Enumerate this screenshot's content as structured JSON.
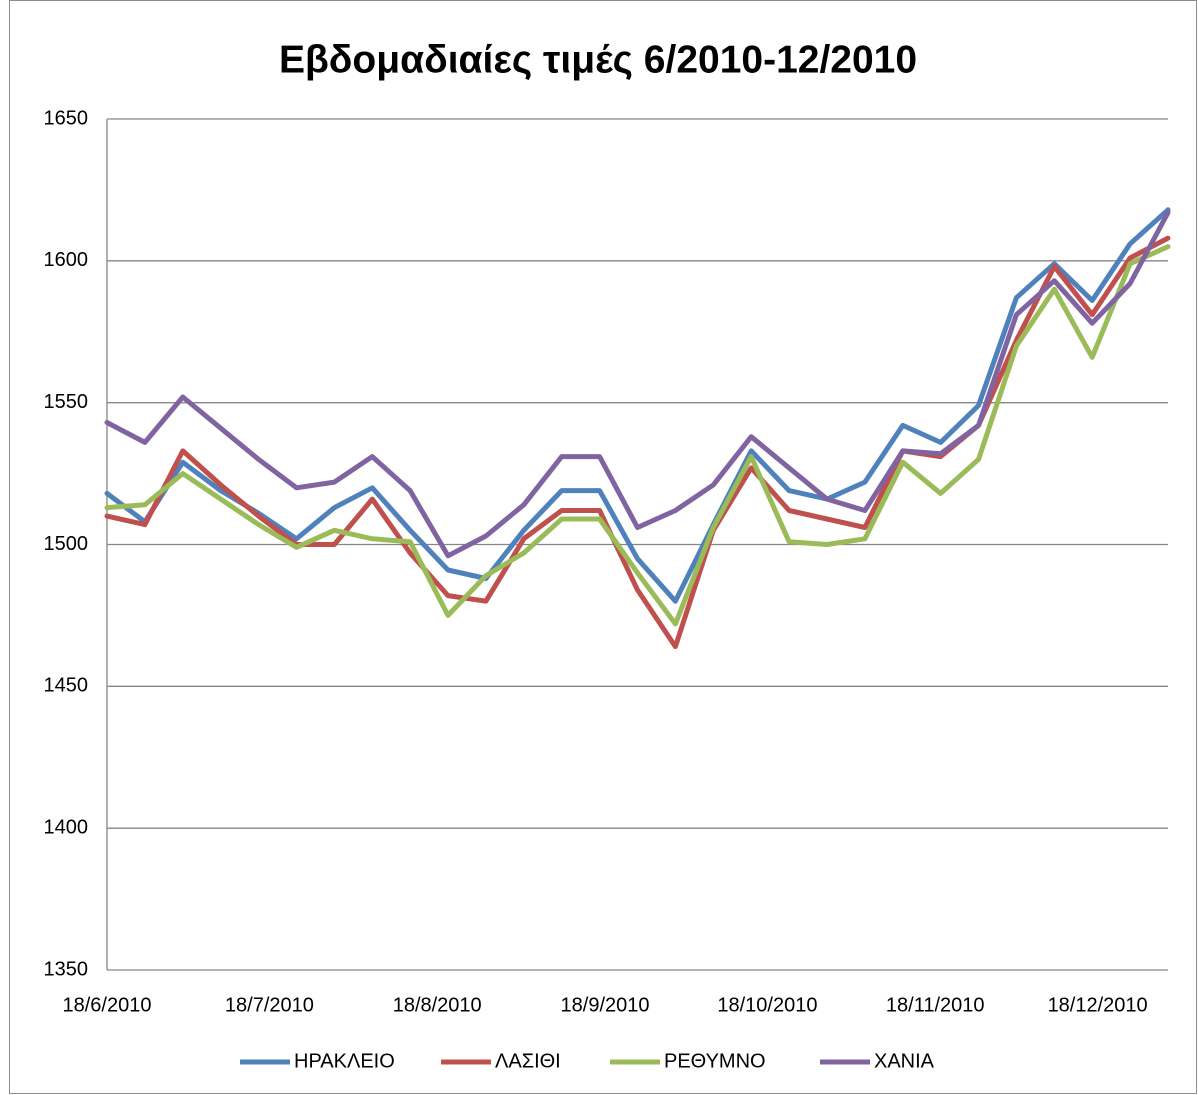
{
  "chart_data": {
    "type": "line",
    "title": "Εβδομαδιαίες τιμές 6/2010-12/2010",
    "x": [
      "2010-06-18",
      "2010-06-25",
      "2010-07-02",
      "2010-07-09",
      "2010-07-16",
      "2010-07-23",
      "2010-07-30",
      "2010-08-06",
      "2010-08-13",
      "2010-08-20",
      "2010-08-27",
      "2010-09-03",
      "2010-09-10",
      "2010-09-17",
      "2010-09-24",
      "2010-10-01",
      "2010-10-08",
      "2010-10-15",
      "2010-10-22",
      "2010-10-29",
      "2010-11-05",
      "2010-11-12",
      "2010-11-19",
      "2010-11-26",
      "2010-12-03",
      "2010-12-10",
      "2010-12-17",
      "2010-12-24",
      "2010-12-31"
    ],
    "series": [
      {
        "name": "ΗΡΑΚΛΕΙΟ",
        "color": "#4f81bd",
        "values": [
          1518,
          1508,
          1529,
          1519,
          1511,
          1502,
          1513,
          1520,
          1505,
          1491,
          1488,
          1505,
          1519,
          1519,
          1495,
          1480,
          1507,
          1533,
          1519,
          1516,
          1522,
          1542,
          1536,
          1549,
          1587,
          1599,
          1586,
          1606,
          1618
        ]
      },
      {
        "name": "ΛΑΣΙΘΙ",
        "color": "#c0504d",
        "values": [
          1510,
          1507,
          1533,
          1521,
          1510,
          1500,
          1500,
          1516,
          1497,
          1482,
          1480,
          1502,
          1512,
          1512,
          1484,
          1464,
          1505,
          1527,
          1512,
          1509,
          1506,
          1533,
          1531,
          1542,
          1572,
          1598,
          1581,
          1601,
          1608
        ]
      },
      {
        "name": "ΡΕΘΥΜΝΟ",
        "color": "#9bbb59",
        "values": [
          1513,
          1514,
          1525,
          1516,
          1507,
          1499,
          1505,
          1502,
          1501,
          1475,
          1489,
          1497,
          1509,
          1509,
          1490,
          1472,
          1506,
          1531,
          1501,
          1500,
          1502,
          1529,
          1518,
          1530,
          1570,
          1590,
          1566,
          1599,
          1605
        ]
      },
      {
        "name": "ΧΑΝΙΑ",
        "color": "#8064a2",
        "values": [
          1543,
          1536,
          1552,
          1541,
          1530,
          1520,
          1522,
          1531,
          1519,
          1496,
          1503,
          1514,
          1531,
          1531,
          1506,
          1512,
          1521,
          1538,
          1527,
          1516,
          1512,
          1533,
          1532,
          1542,
          1581,
          1593,
          1578,
          1592,
          1617
        ]
      }
    ],
    "xlim": [
      "2010-06-18",
      "2010-12-31"
    ],
    "xticks": [
      {
        "value": "2010-06-18",
        "label": "18/6/2010"
      },
      {
        "value": "2010-07-18",
        "label": "18/7/2010"
      },
      {
        "value": "2010-08-18",
        "label": "18/8/2010"
      },
      {
        "value": "2010-09-18",
        "label": "18/9/2010"
      },
      {
        "value": "2010-10-18",
        "label": "18/10/2010"
      },
      {
        "value": "2010-11-18",
        "label": "18/11/2010"
      },
      {
        "value": "2010-12-18",
        "label": "18/12/2010"
      }
    ],
    "ylim": [
      1350,
      1650
    ],
    "yticks": [
      1350,
      1400,
      1450,
      1500,
      1550,
      1600,
      1650
    ],
    "grid": true,
    "legend": "bottom"
  }
}
